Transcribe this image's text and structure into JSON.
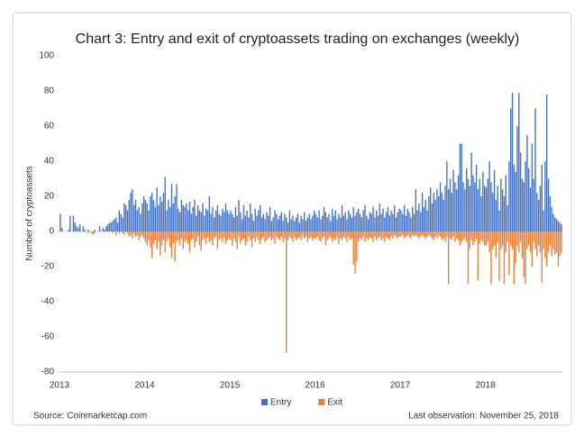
{
  "chart_data": {
    "type": "bar",
    "title": "Chart 3: Entry and exit of cryptoassets trading on exchanges (weekly)",
    "y_label": "Number of cryptoassets",
    "source": "Source: Coinmarketcap.com",
    "note": "Last observation: November 25, 2018",
    "ylim": [
      -80,
      100
    ],
    "yticks": [
      -80,
      -60,
      -40,
      -20,
      0,
      20,
      40,
      60,
      80,
      100
    ],
    "grid": false,
    "legend": "bottom",
    "categories": [
      "2013",
      null,
      null,
      null,
      null,
      null,
      null,
      null,
      null,
      null,
      null,
      null,
      null,
      null,
      null,
      null,
      null,
      null,
      null,
      null,
      null,
      null,
      null,
      null,
      null,
      null,
      null,
      null,
      null,
      null,
      null,
      null,
      null,
      null,
      null,
      null,
      null,
      null,
      null,
      null,
      null,
      null,
      null,
      null,
      null,
      null,
      null,
      null,
      null,
      null,
      null,
      null,
      "2014",
      null,
      null,
      null,
      null,
      null,
      null,
      null,
      null,
      null,
      null,
      null,
      null,
      null,
      null,
      null,
      null,
      null,
      null,
      null,
      null,
      null,
      null,
      null,
      null,
      null,
      null,
      null,
      null,
      null,
      null,
      null,
      null,
      null,
      null,
      null,
      null,
      null,
      null,
      null,
      null,
      null,
      null,
      null,
      null,
      null,
      null,
      null,
      null,
      null,
      null,
      null,
      "2015",
      null,
      null,
      null,
      null,
      null,
      null,
      null,
      null,
      null,
      null,
      null,
      null,
      null,
      null,
      null,
      null,
      null,
      null,
      null,
      null,
      null,
      null,
      null,
      null,
      null,
      null,
      null,
      null,
      null,
      null,
      null,
      null,
      null,
      null,
      null,
      null,
      null,
      null,
      null,
      null,
      null,
      null,
      null,
      null,
      null,
      null,
      null,
      null,
      null,
      null,
      null,
      "2016",
      null,
      null,
      null,
      null,
      null,
      null,
      null,
      null,
      null,
      null,
      null,
      null,
      null,
      null,
      null,
      null,
      null,
      null,
      null,
      null,
      null,
      null,
      null,
      null,
      null,
      null,
      null,
      null,
      null,
      null,
      null,
      null,
      null,
      null,
      null,
      null,
      null,
      null,
      null,
      null,
      null,
      null,
      null,
      null,
      null,
      null,
      null,
      null,
      null,
      null,
      null,
      "2017",
      null,
      null,
      null,
      null,
      null,
      null,
      null,
      null,
      null,
      null,
      null,
      null,
      null,
      null,
      null,
      null,
      null,
      null,
      null,
      null,
      null,
      null,
      null,
      null,
      null,
      null,
      null,
      null,
      null,
      null,
      null,
      null,
      null,
      null,
      null,
      null,
      null,
      null,
      null,
      null,
      null,
      null,
      null,
      null,
      null,
      null,
      null,
      null,
      null,
      null,
      null,
      "2018",
      null,
      null,
      null,
      null,
      null,
      null,
      null,
      null,
      null,
      null,
      null,
      null,
      null,
      null,
      null,
      null,
      null,
      null,
      null,
      null,
      null,
      null,
      null,
      null,
      null,
      null,
      null,
      null,
      null,
      null,
      null,
      null,
      null,
      null,
      null,
      null,
      null,
      null,
      null,
      null,
      null,
      null,
      null,
      null,
      null,
      null
    ],
    "series": [
      {
        "name": "Entry",
        "color": "#4472c4",
        "values": [
          10,
          2,
          0,
          0,
          0,
          1,
          9,
          0,
          9,
          5,
          3,
          2,
          4,
          0,
          3,
          1,
          0,
          1,
          0,
          0,
          0,
          1,
          0,
          0,
          3,
          0,
          2,
          1,
          3,
          4,
          5,
          5,
          6,
          7,
          8,
          5,
          12,
          10,
          8,
          16,
          15,
          12,
          18,
          22,
          24,
          15,
          18,
          12,
          14,
          10,
          16,
          20,
          18,
          16,
          12,
          20,
          22,
          18,
          14,
          25,
          15,
          20,
          17,
          22,
          31,
          12,
          18,
          14,
          27,
          16,
          20,
          27,
          13,
          11,
          18,
          15,
          14,
          16,
          12,
          17,
          10,
          14,
          18,
          9,
          15,
          12,
          11,
          16,
          9,
          13,
          12,
          20,
          10,
          14,
          8,
          12,
          15,
          10,
          9,
          13,
          11,
          16,
          12,
          10,
          12,
          10,
          8,
          14,
          9,
          18,
          11,
          7,
          15,
          9,
          12,
          8,
          16,
          10,
          6,
          13,
          9,
          12,
          15,
          8,
          10,
          7,
          11,
          9,
          14,
          6,
          8,
          12,
          10,
          7,
          9,
          11,
          6,
          10,
          8,
          5,
          12,
          7,
          9,
          6,
          8,
          10,
          5,
          9,
          7,
          11,
          6,
          8,
          10,
          7,
          9,
          12,
          10,
          8,
          12,
          7,
          9,
          14,
          11,
          8,
          10,
          6,
          13,
          9,
          12,
          7,
          10,
          8,
          15,
          9,
          11,
          7,
          12,
          10,
          8,
          14,
          9,
          11,
          13,
          10,
          8,
          12,
          15,
          9,
          7,
          11,
          10,
          14,
          8,
          12,
          9,
          16,
          10,
          13,
          8,
          11,
          14,
          9,
          12,
          10,
          15,
          8,
          11,
          13,
          12,
          10,
          15,
          9,
          13,
          11,
          8,
          14,
          10,
          24,
          12,
          16,
          11,
          22,
          14,
          18,
          12,
          20,
          25,
          16,
          22,
          18,
          24,
          20,
          28,
          22,
          18,
          26,
          40,
          24,
          30,
          22,
          35,
          28,
          24,
          32,
          50,
          50,
          28,
          24,
          36,
          30,
          26,
          45,
          32,
          28,
          38,
          24,
          30,
          20,
          34,
          26,
          25,
          30,
          40,
          28,
          22,
          35,
          18,
          26,
          12,
          30,
          24,
          20,
          32,
          15,
          40,
          70,
          79,
          38,
          34,
          60,
          79,
          45,
          30,
          28,
          40,
          55,
          36,
          25,
          50,
          30,
          70,
          22,
          18,
          26,
          38,
          12,
          40,
          78,
          30,
          20,
          14,
          10,
          8,
          7,
          6,
          5,
          4
        ]
      },
      {
        "name": "Exit",
        "color": "#ed7d31",
        "values": [
          0,
          0,
          0,
          0,
          0,
          0,
          0,
          0,
          0,
          0,
          0,
          0,
          0,
          0,
          0,
          0,
          0,
          -1,
          0,
          -1,
          -2,
          -1,
          0,
          0,
          0,
          0,
          0,
          0,
          0,
          0,
          0,
          0,
          -1,
          0,
          -2,
          0,
          -1,
          0,
          -1,
          -2,
          0,
          -1,
          -3,
          -2,
          -4,
          -1,
          -3,
          -2,
          -5,
          -3,
          -2,
          -4,
          -6,
          -8,
          -5,
          -9,
          -15,
          -7,
          -5,
          -10,
          -6,
          -14,
          -8,
          -5,
          -12,
          -6,
          -4,
          -9,
          -15,
          -7,
          -17,
          -6,
          -5,
          -8,
          -4,
          -10,
          -6,
          -5,
          -7,
          -12,
          -5,
          -4,
          -9,
          -6,
          -3,
          -8,
          -11,
          -5,
          -4,
          -7,
          -3,
          -6,
          -5,
          -8,
          -4,
          -3,
          -10,
          -5,
          -4,
          -6,
          -3,
          -7,
          -5,
          -4,
          -5,
          -8,
          -4,
          -6,
          -10,
          -3,
          -7,
          -5,
          -4,
          -8,
          -6,
          -3,
          -5,
          -9,
          -4,
          -6,
          -3,
          -5,
          -7,
          -4,
          -3,
          -6,
          -5,
          -4,
          -3,
          -5,
          -4,
          -7,
          -3,
          -4,
          -5,
          -3,
          -6,
          -4,
          -69,
          -5,
          -3,
          -4,
          -6,
          -3,
          -5,
          -4,
          -3,
          -5,
          -2,
          -4,
          -3,
          -6,
          -4,
          -3,
          -5,
          -4,
          -4,
          -3,
          -5,
          -6,
          -4,
          -3,
          -8,
          -5,
          -4,
          -3,
          -6,
          -4,
          -5,
          -3,
          -7,
          -4,
          -5,
          -3,
          -4,
          -6,
          -3,
          -5,
          -4,
          -19,
          -24,
          -17,
          -6,
          -4,
          -5,
          -3,
          -6,
          -4,
          -5,
          -3,
          -4,
          -6,
          -3,
          -5,
          -4,
          -3,
          -5,
          -4,
          -6,
          -3,
          -4,
          -5,
          -3,
          -4,
          -2,
          -3,
          -4,
          -3,
          -3,
          -2,
          -4,
          -3,
          -2,
          -3,
          -4,
          -2,
          -3,
          -2,
          -3,
          -4,
          -3,
          -2,
          -3,
          -4,
          -3,
          -2,
          -3,
          -4,
          -5,
          -3,
          -4,
          -2,
          -3,
          -5,
          -4,
          -6,
          -3,
          -30,
          -4,
          -5,
          -3,
          -6,
          -4,
          -5,
          -8,
          -6,
          -5,
          -4,
          -6,
          -30,
          -10,
          -5,
          -8,
          -6,
          -4,
          -28,
          -7,
          -5,
          -6,
          -8,
          -8,
          -6,
          -12,
          -30,
          -10,
          -8,
          -15,
          -6,
          -28,
          -10,
          -8,
          -30,
          -12,
          -6,
          -25,
          -8,
          -10,
          -30,
          -18,
          -8,
          -12,
          -6,
          -15,
          -26,
          -30,
          -10,
          -8,
          -12,
          -20,
          -6,
          -10,
          -14,
          -8,
          -12,
          -29,
          -10,
          -15,
          -20,
          -12,
          -8,
          -14,
          -10,
          -13,
          -12,
          -20,
          -14,
          -12
        ]
      }
    ]
  }
}
